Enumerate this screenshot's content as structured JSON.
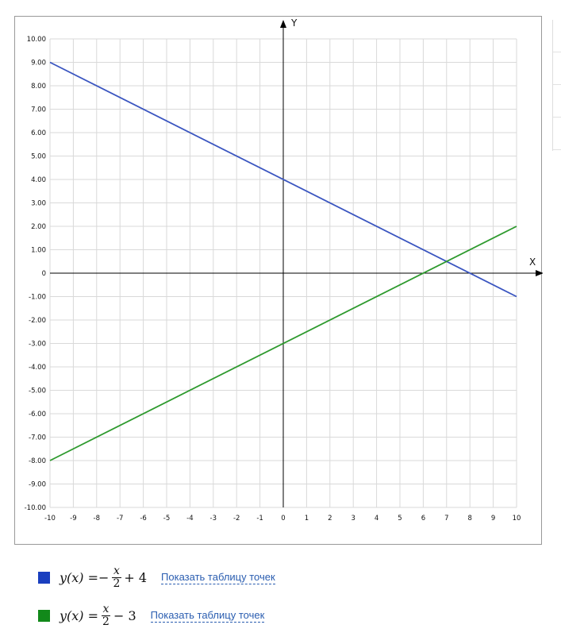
{
  "chart_data": {
    "type": "line",
    "xlabel": "X",
    "ylabel": "Y",
    "xlim": [
      -10,
      10
    ],
    "ylim": [
      -10,
      10
    ],
    "grid": true,
    "x_ticks": [
      "-10",
      "-9",
      "-8",
      "-7",
      "-6",
      "-5",
      "-4",
      "-3",
      "-2",
      "-1",
      "0",
      "1",
      "2",
      "3",
      "4",
      "5",
      "6",
      "7",
      "8",
      "9",
      "10"
    ],
    "y_ticks": [
      "10.00",
      "9.00",
      "8.00",
      "7.00",
      "6.00",
      "5.00",
      "4.00",
      "3.00",
      "2.00",
      "1.00",
      "0",
      "-1.00",
      "-2.00",
      "-3.00",
      "-4.00",
      "-5.00",
      "-6.00",
      "-7.00",
      "-8.00",
      "-9.00",
      "-10.00"
    ],
    "series": [
      {
        "color": "#3a55c0",
        "x": [
          -10,
          10
        ],
        "y": [
          9,
          -1
        ]
      },
      {
        "color": "#2e9a2e",
        "x": [
          -10,
          10
        ],
        "y": [
          -8,
          2
        ]
      }
    ]
  },
  "legend": [
    {
      "color": "#1a3fbf",
      "lhs": "y(x) = ",
      "sign": "−",
      "num": "x",
      "den": "2",
      "rest": " + 4",
      "link": "Показать таблицу точек"
    },
    {
      "color": "#12891a",
      "lhs": "y(x) = ",
      "sign": "",
      "num": "x",
      "den": "2",
      "rest": " − 3",
      "link": "Показать таблицу точек"
    }
  ]
}
